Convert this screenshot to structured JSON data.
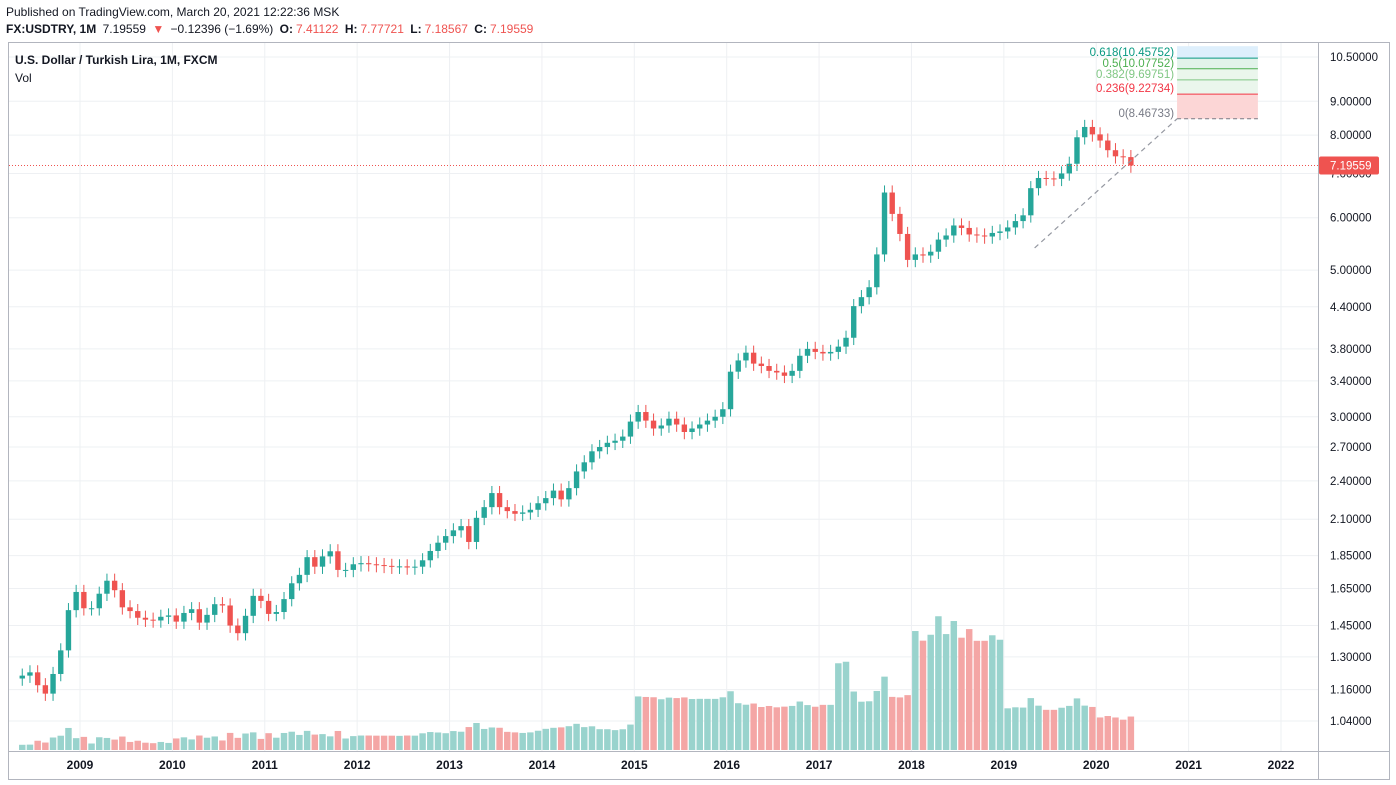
{
  "header": {
    "published": "Published on TradingView.com, March 20, 2021 12:22:36 MSK",
    "symbol": "FX:USDTRY, 1M",
    "last": "7.19559",
    "change_arrow": "▼",
    "change": "−0.12396 (−1.69%)",
    "o_label": "O:",
    "o_value": "7.41122",
    "h_label": "H:",
    "h_value": "7.77721",
    "l_label": "L:",
    "l_value": "7.18567",
    "c_label": "C:",
    "c_value": "7.19559"
  },
  "legend": {
    "title": "U.S. Dollar / Turkish Lira, 1M, FXCM",
    "vol": "Vol"
  },
  "colors": {
    "up": "#26a69a",
    "down": "#ef5350",
    "vol_up": "#99d3cd",
    "vol_down": "#f4a6a5",
    "grid": "#eef0f3",
    "axis_text": "#131722"
  },
  "chart_data": {
    "type": "candlestick",
    "title": "U.S. Dollar / Turkish Lira, 1M, FXCM",
    "y_scale": "log",
    "price_axis_ticks": [
      "10.50000",
      "9.00000",
      "8.00000",
      "7.00000",
      "6.00000",
      "5.00000",
      "4.40000",
      "3.80000",
      "3.40000",
      "3.00000",
      "2.70000",
      "2.40000",
      "2.10000",
      "1.85000",
      "1.65000",
      "1.45000",
      "1.30000",
      "1.16000",
      "1.04000"
    ],
    "time_axis_labels": [
      "2009",
      "2010",
      "2011",
      "2012",
      "2013",
      "2014",
      "2015",
      "2016",
      "2017",
      "2018",
      "2019",
      "2020",
      "2021",
      "2022"
    ],
    "last_price_label": "7.19559",
    "fibonacci": [
      {
        "label": "0.618(10.45752)",
        "price": 10.45752,
        "color": "#089981"
      },
      {
        "label": "0.5(10.07752)",
        "price": 10.07752,
        "color": "#4caf50"
      },
      {
        "label": "0.382(9.69751)",
        "price": 9.69751,
        "color": "#81c784"
      },
      {
        "label": "0.236(9.22734)",
        "price": 9.22734,
        "color": "#f23645"
      },
      {
        "label": "0(8.46733)",
        "price": 8.46733,
        "color": "#787b86"
      }
    ],
    "trend_line": {
      "from": {
        "date": "2019-05",
        "price": 5.4
      },
      "to": {
        "date": "2020-11",
        "price": 8.46733
      }
    },
    "candles_monthly_from": "2008-05",
    "closes": [
      1.218,
      1.232,
      1.178,
      1.144,
      1.225,
      1.33,
      1.53,
      1.63,
      1.54,
      1.54,
      1.62,
      1.695,
      1.64,
      1.545,
      1.525,
      1.49,
      1.48,
      1.476,
      1.495,
      1.502,
      1.47,
      1.515,
      1.535,
      1.465,
      1.505,
      1.562,
      1.555,
      1.45,
      1.412,
      1.5,
      1.608,
      1.58,
      1.51,
      1.52,
      1.59,
      1.68,
      1.73,
      1.84,
      1.78,
      1.845,
      1.878,
      1.76,
      1.76,
      1.795,
      1.802,
      1.795,
      1.79,
      1.785,
      1.78,
      1.782,
      1.775,
      1.78,
      1.82,
      1.88,
      1.935,
      1.98,
      2.02,
      2.05,
      1.94,
      2.11,
      2.19,
      2.3,
      2.19,
      2.16,
      2.14,
      2.15,
      2.17,
      2.22,
      2.26,
      2.32,
      2.25,
      2.34,
      2.48,
      2.56,
      2.66,
      2.7,
      2.74,
      2.76,
      2.8,
      2.95,
      3.05,
      2.96,
      2.88,
      2.91,
      2.98,
      2.92,
      2.845,
      2.88,
      2.92,
      2.96,
      3.0,
      3.08,
      3.51,
      3.65,
      3.75,
      3.61,
      3.58,
      3.52,
      3.5,
      3.46,
      3.52,
      3.71,
      3.8,
      3.76,
      3.74,
      3.76,
      3.83,
      3.95,
      4.41,
      4.55,
      4.71,
      5.28,
      6.55,
      6.08,
      5.67,
      5.18,
      5.28,
      5.26,
      5.33,
      5.56,
      5.64,
      5.84,
      5.79,
      5.66,
      5.64,
      5.62,
      5.69,
      5.72,
      5.8,
      5.93,
      6.05,
      6.65,
      6.89,
      6.88,
      6.87,
      7.0,
      7.24,
      7.94,
      8.23,
      8.02,
      7.85,
      7.59,
      7.43,
      7.41,
      7.196
    ],
    "volume_series": "monthly volume bars under price, log-invisible scale, peaks near 2018"
  }
}
